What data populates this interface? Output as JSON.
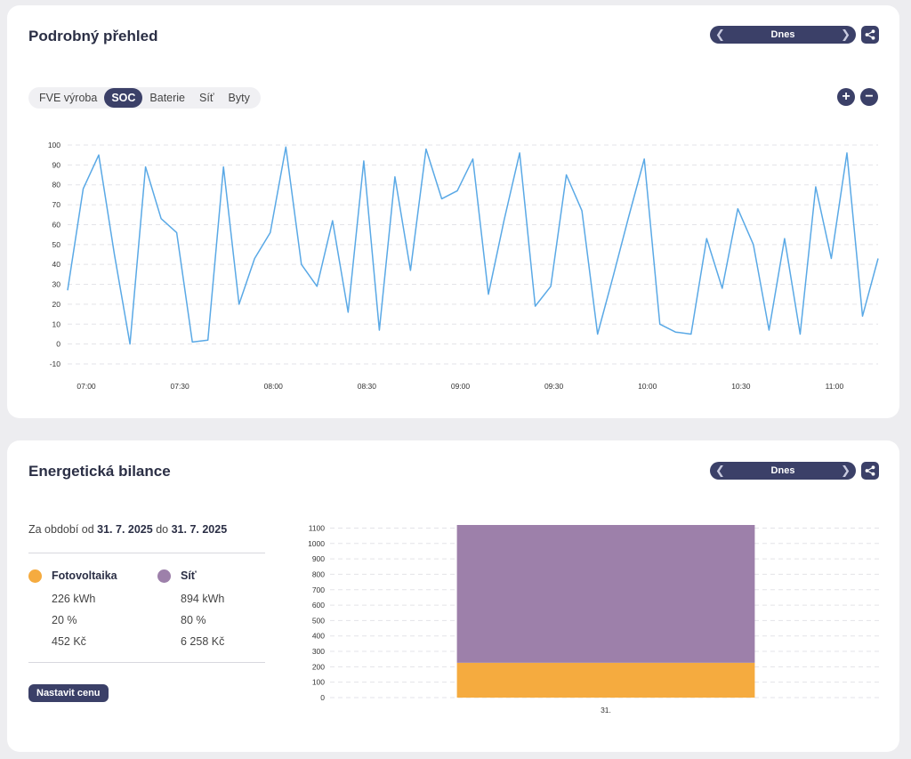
{
  "detail": {
    "title": "Podrobný přehled",
    "date_label": "Dnes",
    "tabs": [
      "FVE výroba",
      "SOC",
      "Baterie",
      "Síť",
      "Byty"
    ],
    "active_tab": "SOC",
    "icons": {
      "prev": "chevron-left-icon",
      "next": "chevron-right-icon",
      "share": "share-icon",
      "zoom_in": "plus-icon",
      "zoom_out": "minus-icon"
    }
  },
  "balance": {
    "title": "Energetická bilance",
    "date_label": "Dnes",
    "period_prefix": "Za období od",
    "period_from": "31. 7. 2025",
    "period_mid": "do",
    "period_to": "31. 7. 2025",
    "legend": [
      {
        "name": "Fotovoltaika",
        "color": "#f5ab3f",
        "energy": "226 kWh",
        "percent": "20 %",
        "cost": "452 Kč"
      },
      {
        "name": "Síť",
        "color": "#9d80aa",
        "energy": "894 kWh",
        "percent": "80 %",
        "cost": "6 258 Kč"
      }
    ],
    "set_price_label": "Nastavit cenu"
  },
  "chart_data": [
    {
      "type": "line",
      "title": "",
      "xlabel": "",
      "ylabel": "",
      "ylim": [
        -10,
        100
      ],
      "yticks": [
        -10,
        0,
        10,
        20,
        30,
        40,
        50,
        60,
        70,
        80,
        90,
        100
      ],
      "xlim": [
        "06:54",
        "11:14"
      ],
      "xticks": [
        "07:00",
        "07:30",
        "08:00",
        "08:30",
        "09:00",
        "09:30",
        "10:00",
        "10:30",
        "11:00"
      ],
      "grid": true,
      "color": "#5aa9e6",
      "series": [
        {
          "x": [
            "06:54",
            "06:59",
            "07:04",
            "07:09",
            "07:14",
            "07:19",
            "07:24",
            "07:29",
            "07:34",
            "07:39",
            "07:44",
            "07:49",
            "07:54",
            "07:59",
            "08:04",
            "08:09",
            "08:14",
            "08:19",
            "08:24",
            "08:29",
            "08:34",
            "08:39",
            "08:44",
            "08:49",
            "08:54",
            "08:59",
            "09:04",
            "09:09",
            "09:14",
            "09:19",
            "09:24",
            "09:29",
            "09:34",
            "09:39",
            "09:44",
            "09:49",
            "09:54",
            "09:59",
            "10:04",
            "10:09",
            "10:14",
            "10:19",
            "10:24",
            "10:29",
            "10:34",
            "10:39",
            "10:44",
            "10:49",
            "10:54",
            "10:59",
            "11:04",
            "11:09",
            "11:14"
          ],
          "values": [
            27,
            78,
            95,
            45,
            0,
            89,
            63,
            56,
            1,
            2,
            89,
            20,
            43,
            56,
            99,
            40,
            29,
            62,
            16,
            92,
            7,
            84,
            37,
            98,
            73,
            77,
            93,
            25,
            62,
            96,
            19,
            29,
            85,
            67,
            5,
            34,
            64,
            93,
            10,
            6,
            5,
            53,
            28,
            68,
            50,
            7,
            53,
            5,
            79,
            43,
            96,
            14,
            43
          ]
        }
      ]
    },
    {
      "type": "bar",
      "stacked": true,
      "title": "",
      "xlabel": "",
      "ylabel": "",
      "categories": [
        "31."
      ],
      "ylim": [
        0,
        1120
      ],
      "yticks": [
        0,
        100,
        200,
        300,
        400,
        500,
        600,
        700,
        800,
        900,
        1000,
        1100
      ],
      "grid": true,
      "series": [
        {
          "name": "Fotovoltaika",
          "color": "#f5ab3f",
          "values": [
            226
          ]
        },
        {
          "name": "Síť",
          "color": "#9d80aa",
          "values": [
            894
          ]
        }
      ]
    }
  ]
}
